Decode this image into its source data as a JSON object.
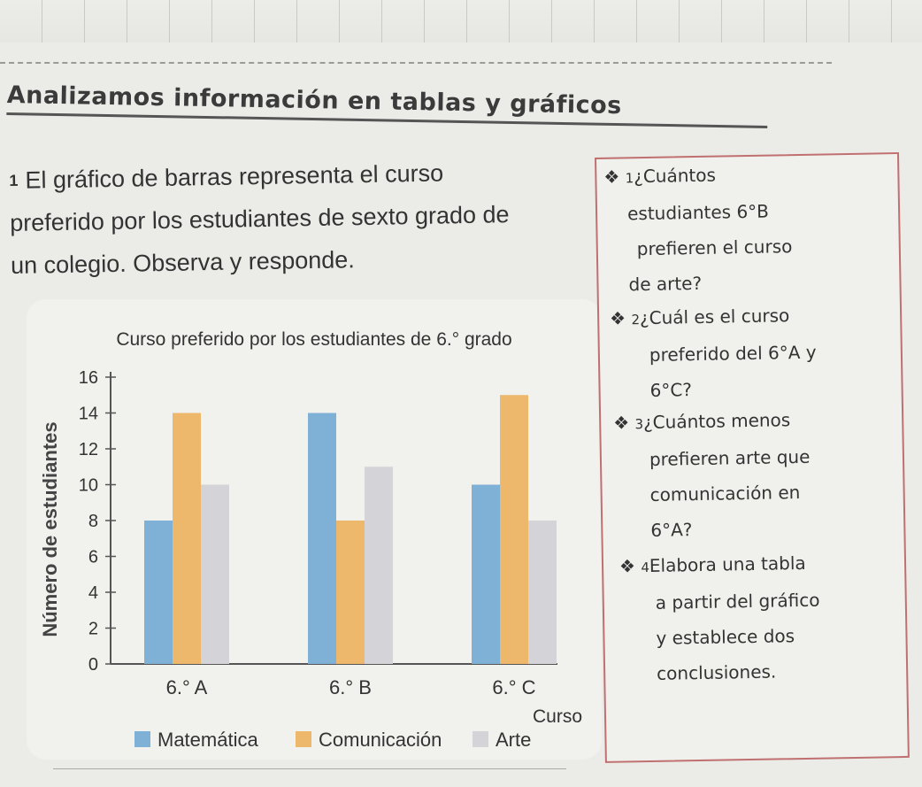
{
  "section": {
    "title": "Analizamos información en tablas y gráficos"
  },
  "prompt": {
    "number": "1",
    "lines": [
      "El gráfico de barras representa el curso",
      "preferido por los estudiantes de sexto grado de",
      "un colegio. Observa y responde."
    ]
  },
  "questions": [
    {
      "icon": "diamond-bullet-icon",
      "number": "1",
      "lines": [
        "¿Cuántos",
        "estudiantes 6°B",
        "prefieren el curso",
        "de arte?"
      ]
    },
    {
      "icon": "diamond-bullet-icon",
      "number": "2",
      "lines": [
        "¿Cuál es el curso",
        "preferido del 6°A y",
        "6°C?"
      ]
    },
    {
      "icon": "diamond-bullet-icon",
      "number": "3",
      "lines": [
        "¿Cuántos menos",
        "prefieren arte que",
        "comunicación en",
        "6°A?"
      ]
    },
    {
      "icon": "diamond-bullet-icon",
      "number": "4",
      "lines": [
        "Elabora una tabla",
        "a partir del gráfico",
        "y establece dos",
        "conclusiones."
      ]
    }
  ],
  "colors": {
    "Matemática": "#7fb0d6",
    "Comunicación": "#eeb86c",
    "Arte": "#d4d4d8",
    "axis": "#555555",
    "text": "#333333"
  },
  "chart_data": {
    "type": "bar",
    "title": "Curso preferido por los estudiantes de 6.° grado",
    "xlabel": "Curso",
    "ylabel": "Número de estudiantes",
    "categories": [
      "6.° A",
      "6.° B",
      "6.° C"
    ],
    "series": [
      {
        "name": "Matemática",
        "values": [
          8,
          14,
          10
        ]
      },
      {
        "name": "Comunicación",
        "values": [
          14,
          8,
          15
        ]
      },
      {
        "name": "Arte",
        "values": [
          10,
          11,
          8
        ]
      }
    ],
    "ylim": [
      0,
      16
    ],
    "yticks": [
      0,
      2,
      4,
      6,
      8,
      10,
      12,
      14,
      16
    ],
    "legend_position": "bottom",
    "grid": false
  }
}
